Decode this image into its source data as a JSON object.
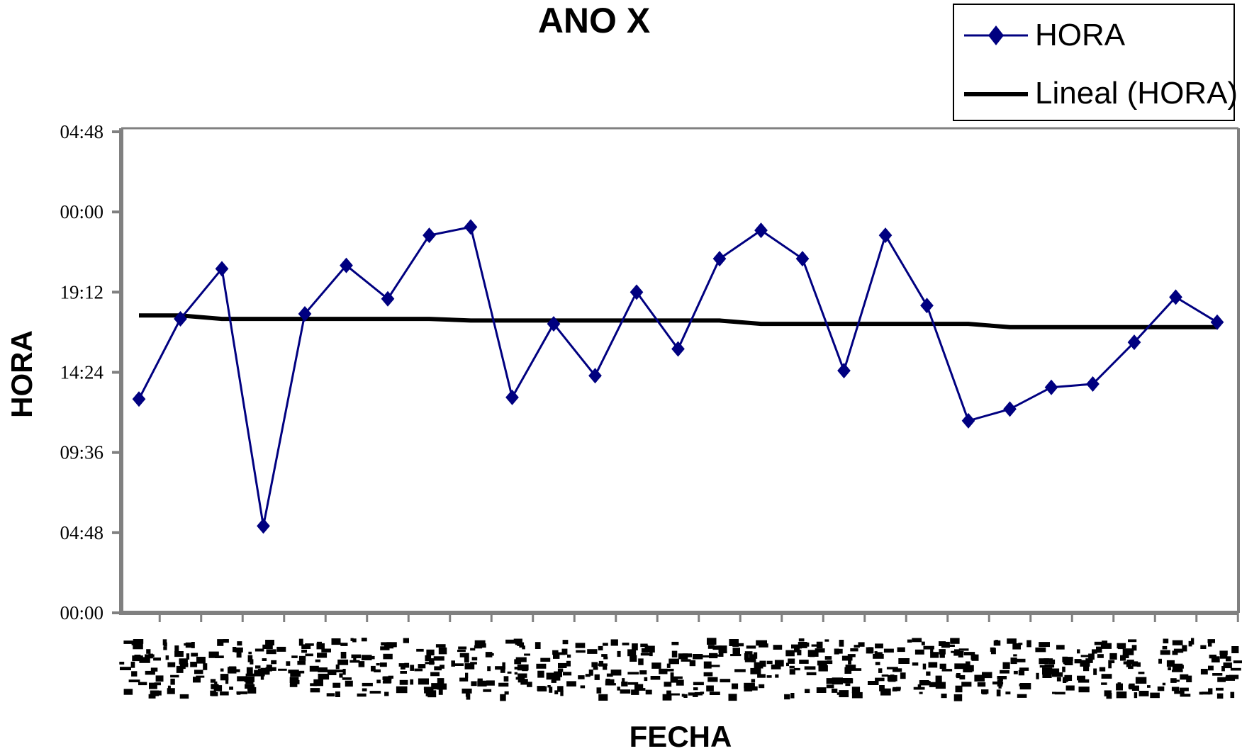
{
  "chart_data": {
    "type": "line",
    "title": "ANO X",
    "xlabel": "FECHA",
    "ylabel": "HORA",
    "y_tick_labels": [
      "00:00",
      "04:48",
      "09:36",
      "14:24",
      "19:12",
      "00:00",
      "04:48"
    ],
    "ylim_hours": [
      0,
      28.8
    ],
    "x_tick_labels_legible": false,
    "grid": false,
    "legend_position": "top-right",
    "colors": {
      "series": "#000080",
      "trend": "#000000",
      "axis": "#808080"
    },
    "series": [
      {
        "name": "HORA",
        "marker": "diamond",
        "y_hours": [
          12.8,
          17.6,
          20.6,
          5.2,
          17.9,
          20.8,
          18.8,
          22.6,
          23.1,
          12.9,
          17.3,
          14.2,
          19.2,
          15.8,
          21.2,
          22.9,
          21.2,
          14.5,
          22.6,
          18.4,
          11.5,
          12.2,
          13.5,
          13.7,
          16.2,
          18.9,
          17.4
        ]
      },
      {
        "name": "Lineal (HORA)",
        "marker": "none",
        "y_hours": [
          17.8,
          17.8,
          17.6,
          17.6,
          17.6,
          17.6,
          17.6,
          17.6,
          17.5,
          17.5,
          17.5,
          17.5,
          17.5,
          17.5,
          17.5,
          17.3,
          17.3,
          17.3,
          17.3,
          17.3,
          17.3,
          17.1,
          17.1,
          17.1,
          17.1,
          17.1,
          17.1
        ]
      }
    ]
  }
}
